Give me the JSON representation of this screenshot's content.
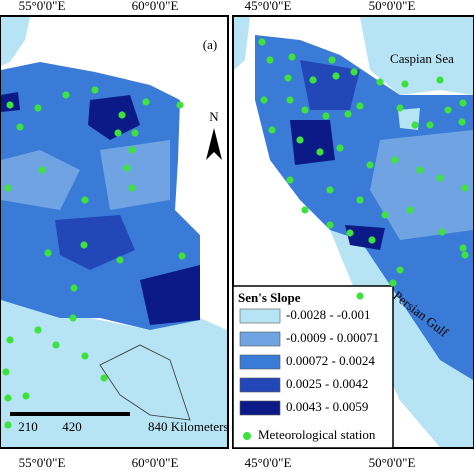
{
  "left_panel": {
    "top_labels": [
      "55°0'0\"E",
      "60°0'0\"E"
    ],
    "panel_label": "(a)",
    "north": "N",
    "scale_labels": [
      "210",
      "420",
      "840 Kilometers"
    ],
    "bottom_labels": [
      "55°0'0\"E",
      "60°0'0\"E"
    ]
  },
  "right_panel": {
    "top_labels": [
      "45°0'0\"E",
      "50°0'0\"E"
    ],
    "sea_labels": [
      "Caspian Sea",
      "Persian Gulf"
    ],
    "bottom_labels": [
      "45°0'0\"E",
      "50°0'0\"E"
    ]
  },
  "legend": {
    "title": "Sen's Slope",
    "items": [
      {
        "label": "-0.0028 - -0.001",
        "color": "#b6e4f4"
      },
      {
        "label": "-0.0009 - 0.00071",
        "color": "#6fa3e2"
      },
      {
        "label": "0.00072 - 0.0024",
        "color": "#3a7bd8"
      },
      {
        "label": "0.0025 - 0.0042",
        "color": "#2447b8"
      },
      {
        "label": "0.0043 - 0.0059",
        "color": "#0b1a86"
      }
    ],
    "station_label": "Meteorological station",
    "station_color": "#3ee23e"
  }
}
